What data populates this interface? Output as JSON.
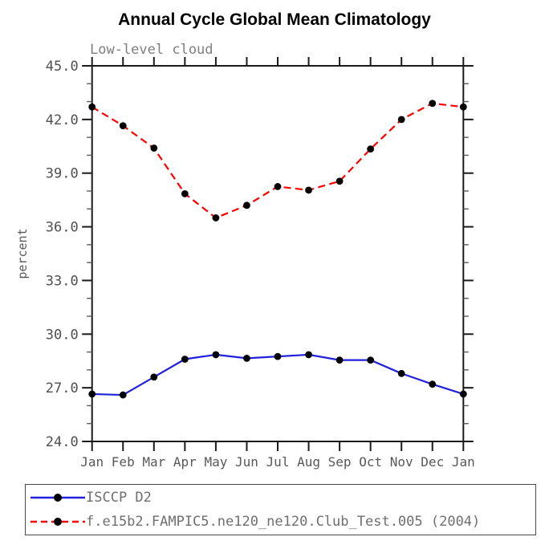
{
  "title": "Annual Cycle Global Mean Climatology",
  "subtitle": "Low-level cloud",
  "colors": {
    "axis": "#1a1a1a",
    "minor_tick": "#5a5a5a",
    "marker": "#000000",
    "blue_line": "#2020dd",
    "red_line": "#ff0000",
    "tick_text": "#4f4f4f",
    "subtitle_text": "#7e7e7e",
    "legend_text": "#6f6f6f"
  },
  "chart_data": {
    "type": "line",
    "title": "Annual Cycle Global Mean Climatology",
    "subtitle": "Low-level cloud",
    "xlabel": "",
    "ylabel": "percent",
    "categories": [
      "Jan",
      "Feb",
      "Mar",
      "Apr",
      "May",
      "Jun",
      "Jul",
      "Aug",
      "Sep",
      "Oct",
      "Nov",
      "Dec",
      "Jan"
    ],
    "ylim": [
      24.0,
      45.0
    ],
    "ytick_major_interval": 3.0,
    "ytick_minor_interval": 1.0,
    "ytick_labels": [
      "45.0",
      "42.0",
      "39.0",
      "36.0",
      "33.0",
      "30.0",
      "27.0",
      "24.0"
    ],
    "grid": false,
    "legend_position": "bottom",
    "series": [
      {
        "name": "ISCCP D2",
        "color": "#2020dd",
        "style": "solid",
        "marker": "circle",
        "marker_color": "#000000",
        "values": [
          26.65,
          26.6,
          27.6,
          28.6,
          28.85,
          28.65,
          28.75,
          28.85,
          28.55,
          28.55,
          27.8,
          27.2,
          26.65
        ]
      },
      {
        "name": "f.e15b2.FAMPIC5.ne120_ne120.Club_Test.005 (2004)",
        "color": "#ff0000",
        "style": "dashed",
        "marker": "circle",
        "marker_color": "#000000",
        "values": [
          42.7,
          41.65,
          40.4,
          37.85,
          36.5,
          37.2,
          38.25,
          38.05,
          38.55,
          40.35,
          42.0,
          42.9,
          42.7
        ]
      }
    ]
  }
}
